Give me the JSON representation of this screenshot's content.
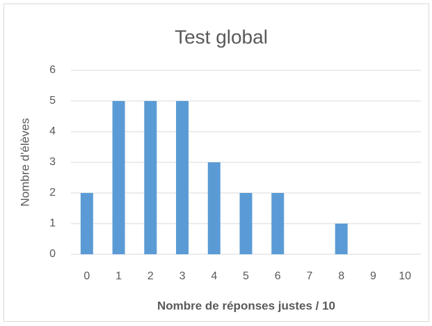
{
  "chart_data": {
    "type": "bar",
    "title": "Test global",
    "x_label": "Nombre de réponses justes / 10",
    "y_label": "Nombre d'élèves",
    "categories": [
      "0",
      "1",
      "2",
      "3",
      "4",
      "5",
      "6",
      "7",
      "8",
      "9",
      "10"
    ],
    "values": [
      2,
      5,
      5,
      5,
      3,
      2,
      2,
      0,
      1,
      0,
      0
    ],
    "color": "#5b9bd5",
    "ylim": [
      0,
      6
    ],
    "yticks": [
      0,
      1,
      2,
      3,
      4,
      5,
      6
    ],
    "grid": true
  }
}
